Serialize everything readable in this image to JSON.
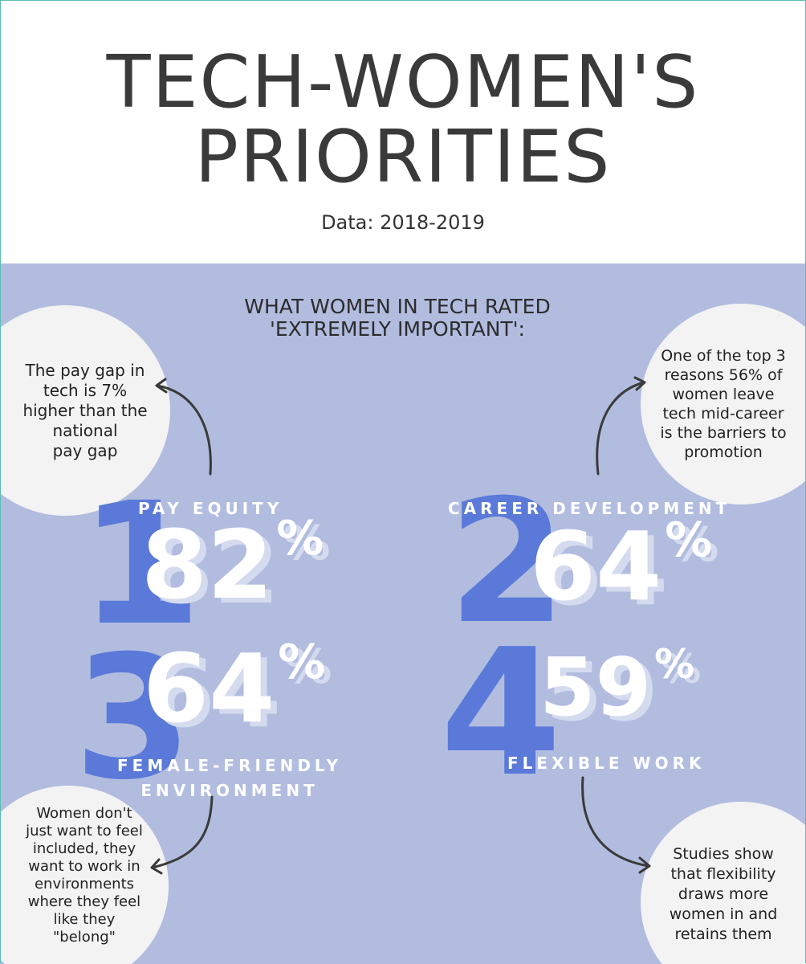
{
  "header": {
    "title_line1": "TECH-WOMEN'S",
    "title_line2": "PRIORITIES",
    "subtitle": "Data: 2018-2019"
  },
  "panel": {
    "heading_line1": "WHAT WOMEN IN TECH RATED",
    "heading_line2": "'EXTREMELY IMPORTANT':",
    "items": [
      {
        "rank": "1",
        "label": "PAY EQUITY",
        "percent": "82",
        "percent_sign": "%",
        "note": [
          "The pay gap in",
          "tech is 7%",
          "higher than the",
          "national",
          "pay gap"
        ]
      },
      {
        "rank": "2",
        "label": "CAREER DEVELOPMENT",
        "percent": "64",
        "percent_sign": "%",
        "note": [
          "One of the top 3",
          "reasons 56% of",
          "women leave",
          "tech mid-career",
          "is the barriers to",
          "promotion"
        ]
      },
      {
        "rank": "3",
        "label_line1": "FEMALE-FRIENDLY",
        "label_line2": "ENVIRONMENT",
        "percent": "64",
        "percent_sign": "%",
        "note": [
          "Women don't",
          "just want to feel",
          "included, they",
          "want to work in",
          "environments",
          "where they feel",
          "like  they",
          "\"belong\""
        ]
      },
      {
        "rank": "4",
        "label": "FLEXIBLE WORK",
        "percent": "59",
        "percent_sign": "%",
        "note": [
          "Studies show",
          "that flexibility",
          "draws more",
          "women in and",
          "retains them"
        ]
      }
    ]
  },
  "colors": {
    "panel_bg": "#b1bcdf",
    "rank_blue": "#5a79d8",
    "title_gray": "#3a3a3a",
    "bubble_bg": "#f3f3f4"
  }
}
